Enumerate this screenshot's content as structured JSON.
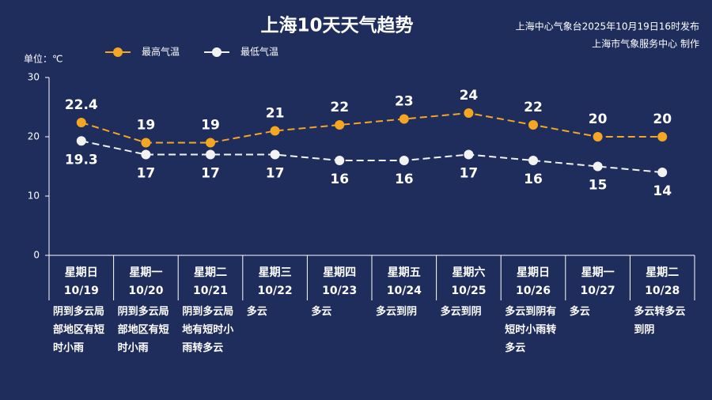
{
  "chart_data": {
    "type": "line",
    "title": "上海10天天气趋势",
    "source": [
      "上海中心气象台2025年10月19日16时发布",
      "上海市气象服务中心 制作"
    ],
    "unit_label": "单位：℃",
    "categories": [
      "10/19",
      "10/20",
      "10/21",
      "10/22",
      "10/23",
      "10/24",
      "10/25",
      "10/26",
      "10/27",
      "10/28"
    ],
    "weekdays": [
      "星期日",
      "星期一",
      "星期二",
      "星期三",
      "星期四",
      "星期五",
      "星期六",
      "星期日",
      "星期一",
      "星期二"
    ],
    "weather": [
      "阴到多云局部地区有短时小雨",
      "阴到多云局部地区有短时小雨",
      "阴到多云局地有短时小雨转多云",
      "多云",
      "多云",
      "多云到阴",
      "多云到阴",
      "多云到阴有短时小雨转多云",
      "多云",
      "多云转多云到阴"
    ],
    "series": [
      {
        "name": "最高气温",
        "color": "#f5a623",
        "values": [
          22.4,
          19,
          19,
          21,
          22,
          23,
          24,
          22,
          20,
          20
        ]
      },
      {
        "name": "最低气温",
        "color": "#f2f2f2",
        "values": [
          19.3,
          17,
          17,
          17,
          16,
          16,
          17,
          16,
          15,
          14
        ]
      }
    ],
    "ylim": [
      0,
      30
    ],
    "yticks": [
      0,
      10,
      20,
      30
    ]
  }
}
